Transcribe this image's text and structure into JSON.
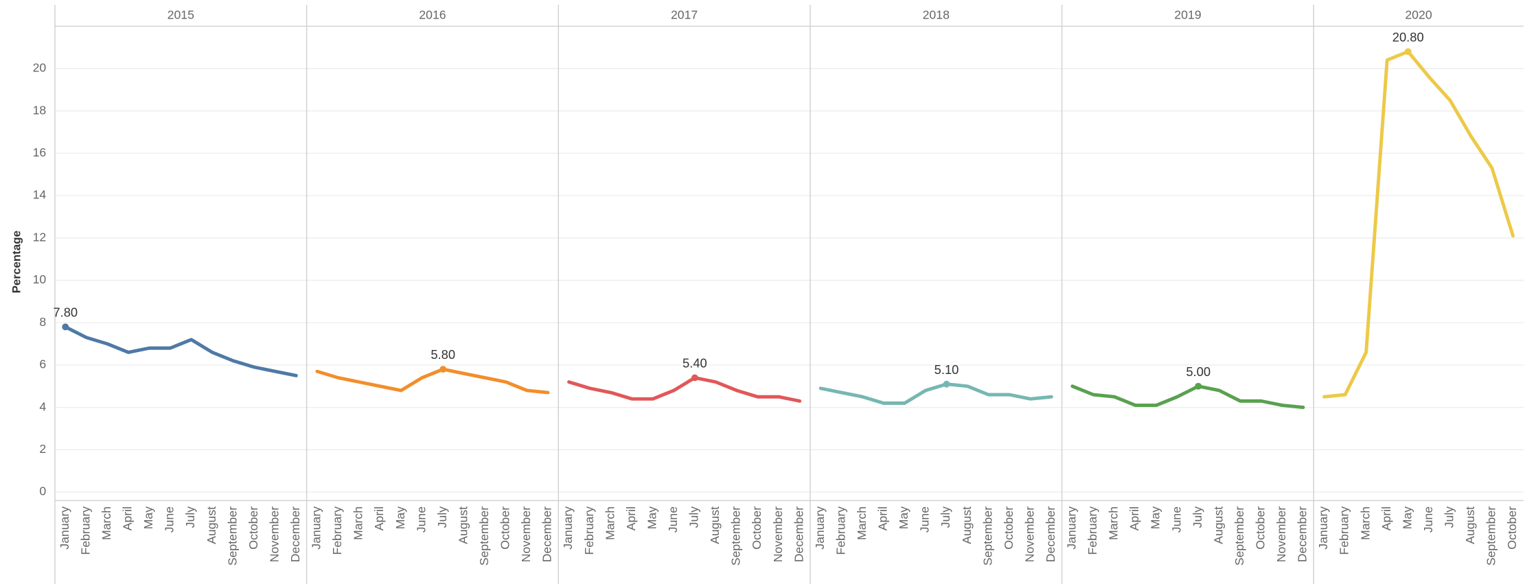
{
  "chart_data": {
    "type": "line",
    "y_label": "Percentage",
    "ylim": [
      -0.4,
      22
    ],
    "yticks": [
      0,
      2,
      4,
      6,
      8,
      10,
      12,
      14,
      16,
      18,
      20
    ],
    "grid": true,
    "series": [
      {
        "name": "2015",
        "color": "#4e79a7",
        "categories": [
          "January",
          "February",
          "March",
          "April",
          "May",
          "June",
          "July",
          "August",
          "September",
          "October",
          "November",
          "December"
        ],
        "values": [
          7.8,
          7.3,
          7.0,
          6.6,
          6.8,
          6.8,
          7.2,
          6.6,
          6.2,
          5.9,
          5.7,
          5.5
        ],
        "value_labels": [
          "7.80",
          null,
          null,
          null,
          null,
          null,
          null,
          null,
          null,
          null,
          null,
          null
        ]
      },
      {
        "name": "2016",
        "color": "#f28e2b",
        "categories": [
          "January",
          "February",
          "March",
          "April",
          "May",
          "June",
          "July",
          "August",
          "September",
          "October",
          "November",
          "December"
        ],
        "values": [
          5.7,
          5.4,
          5.2,
          5.0,
          4.8,
          5.4,
          5.8,
          5.6,
          5.4,
          5.2,
          4.8,
          4.7
        ],
        "value_labels": [
          null,
          null,
          null,
          null,
          null,
          null,
          "5.80",
          null,
          null,
          null,
          null,
          null
        ]
      },
      {
        "name": "2017",
        "color": "#e15759",
        "categories": [
          "January",
          "February",
          "March",
          "April",
          "May",
          "June",
          "July",
          "August",
          "September",
          "October",
          "November",
          "December"
        ],
        "values": [
          5.2,
          4.9,
          4.7,
          4.4,
          4.4,
          4.8,
          5.4,
          5.2,
          4.8,
          4.5,
          4.5,
          4.3
        ],
        "value_labels": [
          null,
          null,
          null,
          null,
          null,
          null,
          "5.40",
          null,
          null,
          null,
          null,
          null
        ]
      },
      {
        "name": "2018",
        "color": "#76b7b2",
        "categories": [
          "January",
          "February",
          "March",
          "April",
          "May",
          "June",
          "July",
          "August",
          "September",
          "October",
          "November",
          "December"
        ],
        "values": [
          4.9,
          4.7,
          4.5,
          4.2,
          4.2,
          4.8,
          5.1,
          5.0,
          4.6,
          4.6,
          4.4,
          4.5
        ],
        "value_labels": [
          null,
          null,
          null,
          null,
          null,
          null,
          "5.10",
          null,
          null,
          null,
          null,
          null
        ]
      },
      {
        "name": "2019",
        "color": "#59a14f",
        "categories": [
          "January",
          "February",
          "March",
          "April",
          "May",
          "June",
          "July",
          "August",
          "September",
          "October",
          "November",
          "December"
        ],
        "values": [
          5.0,
          4.6,
          4.5,
          4.1,
          4.1,
          4.5,
          5.0,
          4.8,
          4.3,
          4.3,
          4.1,
          4.0
        ],
        "value_labels": [
          null,
          null,
          null,
          null,
          null,
          null,
          "5.00",
          null,
          null,
          null,
          null,
          null
        ]
      },
      {
        "name": "2020",
        "color": "#edc948",
        "categories": [
          "January",
          "February",
          "March",
          "April",
          "May",
          "June",
          "July",
          "August",
          "September",
          "October"
        ],
        "values": [
          4.5,
          4.6,
          6.6,
          20.4,
          20.8,
          19.6,
          18.5,
          16.8,
          15.3,
          12.1
        ],
        "value_labels": [
          null,
          null,
          null,
          null,
          "20.80",
          null,
          null,
          null,
          null,
          null
        ]
      }
    ]
  }
}
